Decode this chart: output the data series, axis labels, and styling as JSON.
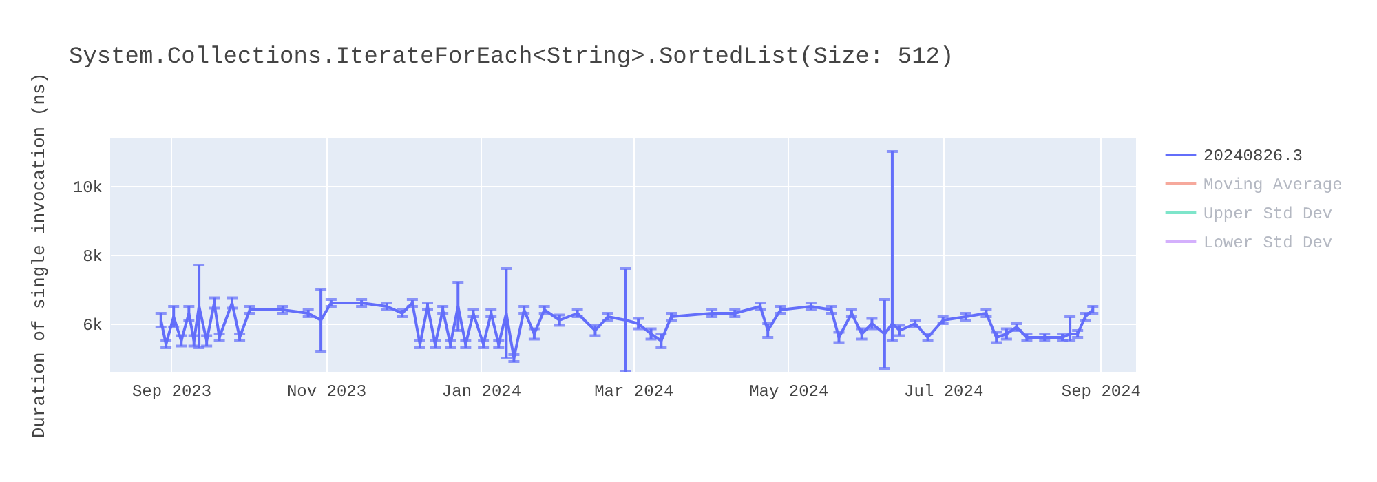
{
  "chart_data": {
    "type": "line",
    "title": "System.Collections.IterateForEach<String>.SortedList(Size: 512)",
    "ylabel": "Duration of single invocation (ns)",
    "x": [
      "2023-08-28",
      "2023-08-30",
      "2023-09-02",
      "2023-09-05",
      "2023-09-08",
      "2023-09-10",
      "2023-09-12",
      "2023-09-15",
      "2023-09-18",
      "2023-09-20",
      "2023-09-25",
      "2023-09-28",
      "2023-10-02",
      "2023-10-15",
      "2023-10-25",
      "2023-10-30",
      "2023-11-03",
      "2023-11-15",
      "2023-11-25",
      "2023-12-01",
      "2023-12-05",
      "2023-12-08",
      "2023-12-11",
      "2023-12-14",
      "2023-12-17",
      "2023-12-20",
      "2023-12-23",
      "2023-12-26",
      "2023-12-29",
      "2024-01-02",
      "2024-01-05",
      "2024-01-08",
      "2024-01-11",
      "2024-01-14",
      "2024-01-18",
      "2024-01-22",
      "2024-01-26",
      "2024-02-01",
      "2024-02-08",
      "2024-02-15",
      "2024-02-20",
      "2024-02-27",
      "2024-03-03",
      "2024-03-08",
      "2024-03-12",
      "2024-03-16",
      "2024-04-01",
      "2024-04-10",
      "2024-04-20",
      "2024-04-23",
      "2024-04-28",
      "2024-05-10",
      "2024-05-18",
      "2024-05-21",
      "2024-05-26",
      "2024-05-30",
      "2024-06-03",
      "2024-06-08",
      "2024-06-11",
      "2024-06-14",
      "2024-06-20",
      "2024-06-25",
      "2024-07-01",
      "2024-07-10",
      "2024-07-18",
      "2024-07-22",
      "2024-07-26",
      "2024-07-30",
      "2024-08-03",
      "2024-08-10",
      "2024-08-17",
      "2024-08-20",
      "2024-08-23",
      "2024-08-26",
      "2024-08-29"
    ],
    "series": [
      {
        "name": "20240826.3",
        "color": "#636efa",
        "values": [
          6100,
          5400,
          6200,
          5500,
          6300,
          5500,
          6500,
          5500,
          6600,
          5600,
          6600,
          5600,
          6400,
          6400,
          6300,
          6100,
          6600,
          6600,
          6500,
          6300,
          6600,
          5400,
          6500,
          5400,
          6400,
          5400,
          6500,
          5400,
          6300,
          5400,
          6300,
          5400,
          6300,
          5000,
          6400,
          5700,
          6400,
          6100,
          6300,
          5800,
          6200,
          6100,
          6000,
          5700,
          5500,
          6200,
          6300,
          6300,
          6500,
          5800,
          6400,
          6500,
          6400,
          5600,
          6300,
          5700,
          6000,
          5700,
          6000,
          5800,
          6000,
          5600,
          6100,
          6200,
          6300,
          5600,
          5700,
          5900,
          5600,
          5600,
          5600,
          5700,
          5700,
          6200,
          6400
        ],
        "errors": [
          200,
          100,
          300,
          150,
          200,
          150,
          1200,
          150,
          150,
          100,
          150,
          100,
          100,
          100,
          100,
          900,
          100,
          100,
          100,
          100,
          100,
          100,
          100,
          100,
          100,
          100,
          700,
          100,
          100,
          100,
          100,
          100,
          1300,
          100,
          100,
          150,
          100,
          150,
          100,
          150,
          100,
          1500,
          150,
          150,
          200,
          100,
          100,
          100,
          100,
          200,
          100,
          100,
          100,
          150,
          100,
          150,
          150,
          1000,
          [
            5500,
            11000
          ],
          150,
          100,
          100,
          100,
          100,
          100,
          150,
          150,
          100,
          100,
          100,
          100,
          [
            5500,
            6200
          ],
          100,
          100,
          100
        ]
      },
      {
        "name": "Moving Average",
        "color": "#ef553b",
        "values": [
          null,
          null,
          null,
          null,
          null,
          null,
          null,
          null,
          null,
          null,
          null,
          null,
          null,
          null,
          null,
          null,
          null,
          null,
          null,
          null,
          null,
          null,
          null,
          null,
          null,
          null,
          null,
          null,
          null,
          null,
          null,
          null,
          null,
          null,
          null,
          null,
          null,
          null,
          null,
          null,
          null,
          null,
          null,
          null,
          null,
          null,
          null,
          null,
          null,
          null,
          null,
          null,
          null,
          null,
          null,
          null,
          null,
          null,
          null,
          null,
          null,
          null,
          null,
          null,
          null,
          null,
          null,
          null,
          null,
          null,
          null,
          null,
          null,
          null,
          null
        ]
      },
      {
        "name": "Upper Std Dev",
        "color": "#00cc96",
        "values": [
          null,
          null,
          null,
          null,
          null,
          null,
          null,
          null,
          null,
          null,
          null,
          null,
          null,
          null,
          null,
          null,
          null,
          null,
          null,
          null,
          null,
          null,
          null,
          null,
          null,
          null,
          null,
          null,
          null,
          null,
          null,
          null,
          null,
          null,
          null,
          null,
          null,
          null,
          null,
          null,
          null,
          null,
          null,
          null,
          null,
          null,
          null,
          null,
          null,
          null,
          null,
          null,
          null,
          null,
          null,
          null,
          null,
          null,
          null,
          null,
          null,
          null,
          null,
          null,
          null,
          null,
          null,
          null,
          null,
          null,
          null,
          null,
          null,
          null,
          null
        ]
      },
      {
        "name": "Lower Std Dev",
        "color": "#ab63fa",
        "values": [
          null,
          null,
          null,
          null,
          null,
          null,
          null,
          null,
          null,
          null,
          null,
          null,
          null,
          null,
          null,
          null,
          null,
          null,
          null,
          null,
          null,
          null,
          null,
          null,
          null,
          null,
          null,
          null,
          null,
          null,
          null,
          null,
          null,
          null,
          null,
          null,
          null,
          null,
          null,
          null,
          null,
          null,
          null,
          null,
          null,
          null,
          null,
          null,
          null,
          null,
          null,
          null,
          null,
          null,
          null,
          null,
          null,
          null,
          null,
          null,
          null,
          null,
          null,
          null,
          null,
          null,
          null,
          null,
          null,
          null,
          null,
          null,
          null,
          null,
          null
        ]
      }
    ],
    "xlim": [
      "2023-08-08",
      "2024-09-15"
    ],
    "xticks": [
      {
        "value": "2023-09-01",
        "label": "Sep 2023"
      },
      {
        "value": "2023-11-01",
        "label": "Nov 2023"
      },
      {
        "value": "2024-01-01",
        "label": "Jan 2024"
      },
      {
        "value": "2024-03-01",
        "label": "Mar 2024"
      },
      {
        "value": "2024-05-01",
        "label": "May 2024"
      },
      {
        "value": "2024-07-01",
        "label": "Jul 2024"
      },
      {
        "value": "2024-09-01",
        "label": "Sep 2024"
      }
    ],
    "ylim": [
      4600,
      11400
    ],
    "yticks": [
      {
        "value": 6000,
        "label": "6k"
      },
      {
        "value": 8000,
        "label": "8k"
      },
      {
        "value": 10000,
        "label": "10k"
      }
    ],
    "grid": true,
    "legend": "right"
  }
}
